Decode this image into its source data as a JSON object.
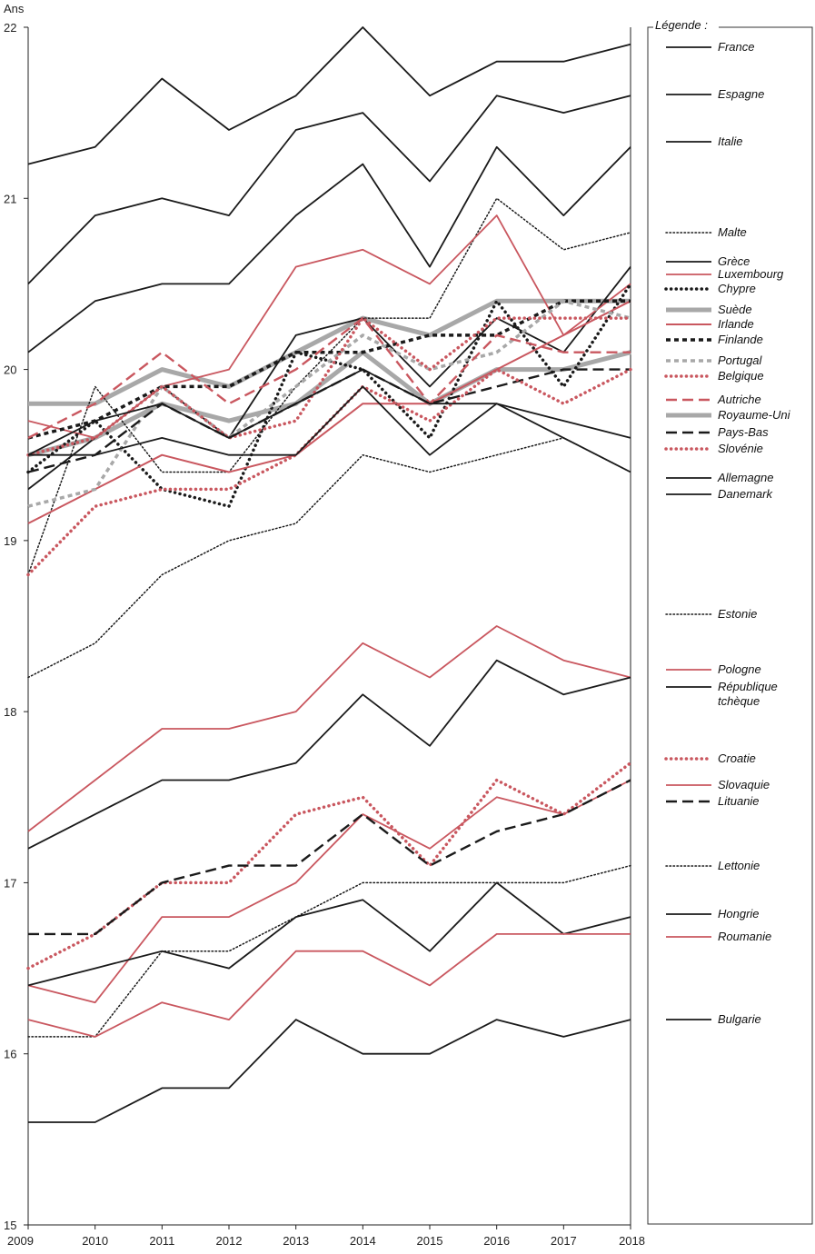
{
  "chart_data": {
    "type": "line",
    "ylabel": "Ans",
    "legend_title": "Légende :",
    "x": [
      2009,
      2010,
      2011,
      2012,
      2013,
      2014,
      2015,
      2016,
      2017,
      2018
    ],
    "ylim": [
      15,
      22
    ],
    "yticks": [
      15,
      16,
      17,
      18,
      19,
      20,
      21,
      22
    ],
    "grid": false,
    "legend_position": "right",
    "colors": {
      "black": "#1a1a1a",
      "red": "#c9575f",
      "grey": "#a8a8a8"
    },
    "series": [
      {
        "name": "France",
        "color": "black",
        "style": "solid",
        "values": [
          21.2,
          21.3,
          21.7,
          21.4,
          21.6,
          22.0,
          21.6,
          21.8,
          21.8,
          21.9
        ]
      },
      {
        "name": "Espagne",
        "color": "black",
        "style": "solid",
        "values": [
          20.5,
          20.9,
          21.0,
          20.9,
          21.4,
          21.5,
          21.1,
          21.6,
          21.5,
          21.6
        ]
      },
      {
        "name": "Italie",
        "color": "black",
        "style": "solid",
        "values": [
          20.1,
          20.4,
          20.5,
          20.5,
          20.9,
          21.2,
          20.6,
          21.3,
          20.9,
          21.3
        ]
      },
      {
        "name": "Malte",
        "color": "black",
        "style": "dotted",
        "values": [
          18.8,
          19.9,
          19.4,
          19.4,
          19.9,
          20.3,
          20.3,
          21.0,
          20.7,
          20.8
        ]
      },
      {
        "name": "Grèce",
        "color": "black",
        "style": "solid",
        "values": [
          19.3,
          19.6,
          19.9,
          19.6,
          20.2,
          20.3,
          19.9,
          20.3,
          20.1,
          20.6
        ]
      },
      {
        "name": "Luxembourg",
        "color": "red",
        "style": "solid",
        "values": [
          19.7,
          19.6,
          19.9,
          20.0,
          20.6,
          20.7,
          20.5,
          20.9,
          20.2,
          20.5
        ]
      },
      {
        "name": "Chypre",
        "color": "black",
        "style": "bold-dotted",
        "values": [
          19.4,
          19.7,
          19.3,
          19.2,
          20.1,
          20.0,
          19.6,
          20.4,
          19.9,
          20.5
        ]
      },
      {
        "name": "Suède",
        "color": "grey",
        "style": "thick",
        "values": [
          19.8,
          19.8,
          20.0,
          19.9,
          20.1,
          20.3,
          20.2,
          20.4,
          20.4,
          20.4
        ]
      },
      {
        "name": "Irlande",
        "color": "red",
        "style": "solid-thin",
        "values": [
          19.1,
          19.3,
          19.5,
          19.4,
          19.5,
          19.8,
          19.8,
          20.0,
          20.2,
          20.4
        ]
      },
      {
        "name": "Finlande",
        "color": "black",
        "style": "bold-dashed",
        "values": [
          19.6,
          19.7,
          19.9,
          19.9,
          20.1,
          20.1,
          20.2,
          20.2,
          20.4,
          20.4
        ]
      },
      {
        "name": "Portugal",
        "color": "grey",
        "style": "bold-dashed",
        "values": [
          19.2,
          19.3,
          19.9,
          19.6,
          19.9,
          20.2,
          20.0,
          20.1,
          20.4,
          20.3
        ]
      },
      {
        "name": "Belgique",
        "color": "red",
        "style": "bold-dotted",
        "values": [
          19.5,
          19.6,
          19.9,
          19.6,
          19.7,
          20.3,
          20.0,
          20.3,
          20.3,
          20.3
        ]
      },
      {
        "name": "Autriche",
        "color": "red",
        "style": "dashed",
        "values": [
          19.6,
          19.8,
          20.1,
          19.8,
          20.0,
          20.3,
          19.8,
          20.2,
          20.1,
          20.1
        ]
      },
      {
        "name": "Royaume-Uni",
        "color": "grey",
        "style": "thick",
        "values": [
          19.5,
          19.6,
          19.8,
          19.7,
          19.8,
          20.1,
          19.8,
          20.0,
          20.0,
          20.1
        ]
      },
      {
        "name": "Pays-Bas",
        "color": "black",
        "style": "dashed",
        "values": [
          19.4,
          19.5,
          19.8,
          19.6,
          19.8,
          20.0,
          19.8,
          19.9,
          20.0,
          20.0
        ]
      },
      {
        "name": "Slovénie",
        "color": "red",
        "style": "bold-dotted",
        "values": [
          18.8,
          19.2,
          19.3,
          19.3,
          19.5,
          19.9,
          19.7,
          20.0,
          19.8,
          20.0
        ]
      },
      {
        "name": "Allemagne",
        "color": "black",
        "style": "solid",
        "values": [
          19.5,
          19.7,
          19.8,
          19.6,
          19.8,
          20.0,
          19.8,
          19.8,
          19.7,
          19.6
        ]
      },
      {
        "name": "Danemark",
        "color": "black",
        "style": "solid",
        "values": [
          19.5,
          19.5,
          19.6,
          19.5,
          19.5,
          19.9,
          19.5,
          19.8,
          19.6,
          19.4
        ]
      },
      {
        "name": "Estonie",
        "color": "black",
        "style": "dotted",
        "values": [
          18.2,
          18.4,
          18.8,
          19.0,
          19.1,
          19.5,
          19.4,
          19.5,
          19.6,
          19.4
        ]
      },
      {
        "name": "Pologne",
        "color": "red",
        "style": "solid",
        "values": [
          17.3,
          17.6,
          17.9,
          17.9,
          18.0,
          18.4,
          18.2,
          18.5,
          18.3,
          18.2
        ]
      },
      {
        "name": "République tchèque",
        "color": "black",
        "style": "solid",
        "values": [
          17.2,
          17.4,
          17.6,
          17.6,
          17.7,
          18.1,
          17.8,
          18.3,
          18.1,
          18.2
        ]
      },
      {
        "name": "Croatie",
        "color": "red",
        "style": "bold-dotted",
        "values": [
          16.5,
          16.7,
          17.0,
          17.0,
          17.4,
          17.5,
          17.1,
          17.6,
          17.4,
          17.7
        ]
      },
      {
        "name": "Slovaquie",
        "color": "red",
        "style": "solid",
        "values": [
          16.4,
          16.3,
          16.8,
          16.8,
          17.0,
          17.4,
          17.2,
          17.5,
          17.4,
          17.6
        ]
      },
      {
        "name": "Lituanie",
        "color": "black",
        "style": "dashed",
        "values": [
          16.7,
          16.7,
          17.0,
          17.1,
          17.1,
          17.4,
          17.1,
          17.3,
          17.4,
          17.6
        ]
      },
      {
        "name": "Lettonie",
        "color": "black",
        "style": "dotted",
        "values": [
          16.1,
          16.1,
          16.6,
          16.6,
          16.8,
          17.0,
          17.0,
          17.0,
          17.0,
          17.1
        ]
      },
      {
        "name": "Hongrie",
        "color": "black",
        "style": "solid",
        "values": [
          16.4,
          16.5,
          16.6,
          16.5,
          16.8,
          16.9,
          16.6,
          17.0,
          16.7,
          16.8
        ]
      },
      {
        "name": "Roumanie",
        "color": "red",
        "style": "solid",
        "values": [
          16.2,
          16.1,
          16.3,
          16.2,
          16.6,
          16.6,
          16.4,
          16.7,
          16.7,
          16.7
        ]
      },
      {
        "name": "Bulgarie",
        "color": "black",
        "style": "solid",
        "values": [
          15.6,
          15.6,
          15.8,
          15.8,
          16.2,
          16.0,
          16.0,
          16.2,
          16.1,
          16.2
        ]
      }
    ],
    "legend": [
      {
        "series": "France",
        "lines": [
          "France"
        ]
      },
      {
        "series": "Espagne",
        "lines": [
          "Espagne"
        ]
      },
      {
        "series": "Italie",
        "lines": [
          "Italie"
        ]
      },
      {
        "series": "Malte",
        "lines": [
          "Malte"
        ]
      },
      {
        "series": "Grèce",
        "lines": [
          "Grèce"
        ]
      },
      {
        "series": "Luxembourg",
        "lines": [
          "Luxembourg"
        ]
      },
      {
        "series": "Chypre",
        "lines": [
          "Chypre"
        ]
      },
      {
        "series": "Suède",
        "lines": [
          "Suède"
        ]
      },
      {
        "series": "Irlande",
        "lines": [
          "Irlande"
        ]
      },
      {
        "series": "Finlande",
        "lines": [
          "Finlande"
        ]
      },
      {
        "series": "Portugal",
        "lines": [
          "Portugal"
        ]
      },
      {
        "series": "Belgique",
        "lines": [
          "Belgique"
        ]
      },
      {
        "series": "Autriche",
        "lines": [
          "Autriche"
        ]
      },
      {
        "series": "Royaume-Uni",
        "lines": [
          "Royaume-Uni"
        ]
      },
      {
        "series": "Pays-Bas",
        "lines": [
          "Pays-Bas"
        ]
      },
      {
        "series": "Slovénie",
        "lines": [
          "Slovénie"
        ]
      },
      {
        "series": "Allemagne",
        "lines": [
          "Allemagne"
        ]
      },
      {
        "series": "Danemark",
        "lines": [
          "Danemark"
        ]
      },
      {
        "series": "Estonie",
        "lines": [
          "Estonie"
        ]
      },
      {
        "series": "Pologne",
        "lines": [
          "Pologne"
        ]
      },
      {
        "series": "République tchèque",
        "lines": [
          "République",
          "tchèque"
        ]
      },
      {
        "series": "Croatie",
        "lines": [
          "Croatie"
        ]
      },
      {
        "series": "Slovaquie",
        "lines": [
          "Slovaquie"
        ]
      },
      {
        "series": "Lituanie",
        "lines": [
          "Lituanie"
        ]
      },
      {
        "series": "Lettonie",
        "lines": [
          "Lettonie"
        ]
      },
      {
        "series": "Hongrie",
        "lines": [
          "Hongrie"
        ]
      },
      {
        "series": "Roumanie",
        "lines": [
          "Roumanie"
        ]
      },
      {
        "series": "Bulgarie",
        "lines": [
          "Bulgarie"
        ]
      }
    ]
  }
}
